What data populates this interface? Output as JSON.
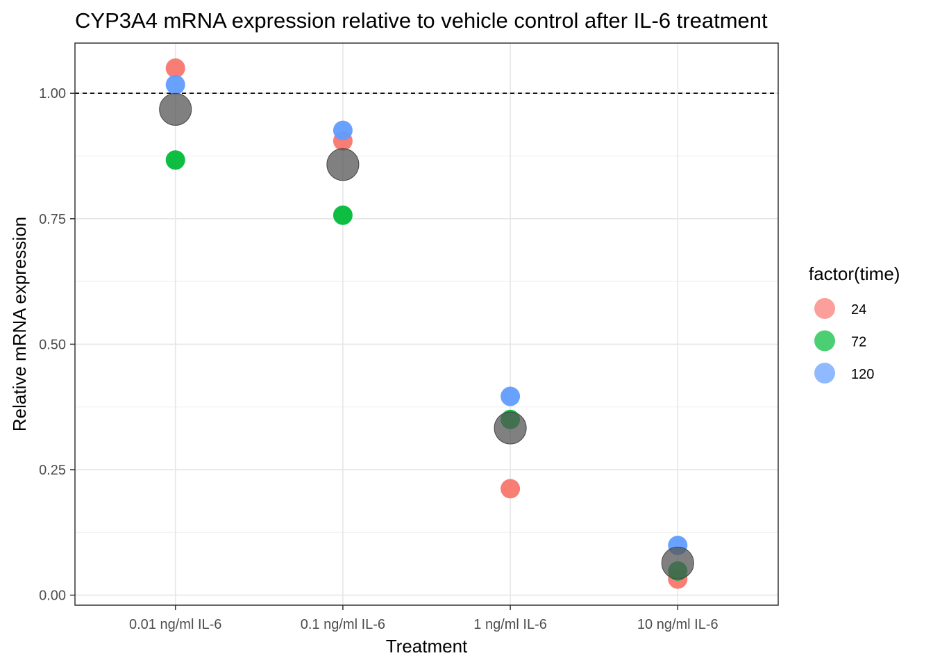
{
  "chart_data": {
    "type": "scatter",
    "title": "CYP3A4 mRNA expression relative to vehicle control after IL-6 treatment",
    "xlabel": "Treatment",
    "ylabel": "Relative mRNA expression",
    "categories": [
      "0.01 ng/ml IL-6",
      "0.1 ng/ml IL-6",
      "1 ng/ml IL-6",
      "10 ng/ml IL-6"
    ],
    "ylim": [
      -0.02,
      1.1
    ],
    "yticks": [
      0.0,
      0.25,
      0.5,
      0.75,
      1.0
    ],
    "ytick_labels": [
      "0.00",
      "0.25",
      "0.50",
      "0.75",
      "1.00"
    ],
    "reference_line": {
      "y": 1.0,
      "style": "dashed",
      "color": "#000000"
    },
    "grid": true,
    "legend": {
      "title": "factor(time)",
      "position": "right"
    },
    "series": [
      {
        "name": "24",
        "color": "#F8766D",
        "values": [
          1.05,
          0.905,
          0.212,
          0.032
        ]
      },
      {
        "name": "72",
        "color": "#00BA38",
        "values": [
          0.867,
          0.757,
          0.35,
          0.048
        ]
      },
      {
        "name": "120",
        "color": "#619CFF",
        "values": [
          1.017,
          0.926,
          0.396,
          0.099
        ]
      }
    ],
    "mean_series": {
      "color": "#555555",
      "values": [
        0.968,
        0.858,
        0.333,
        0.064
      ]
    }
  }
}
